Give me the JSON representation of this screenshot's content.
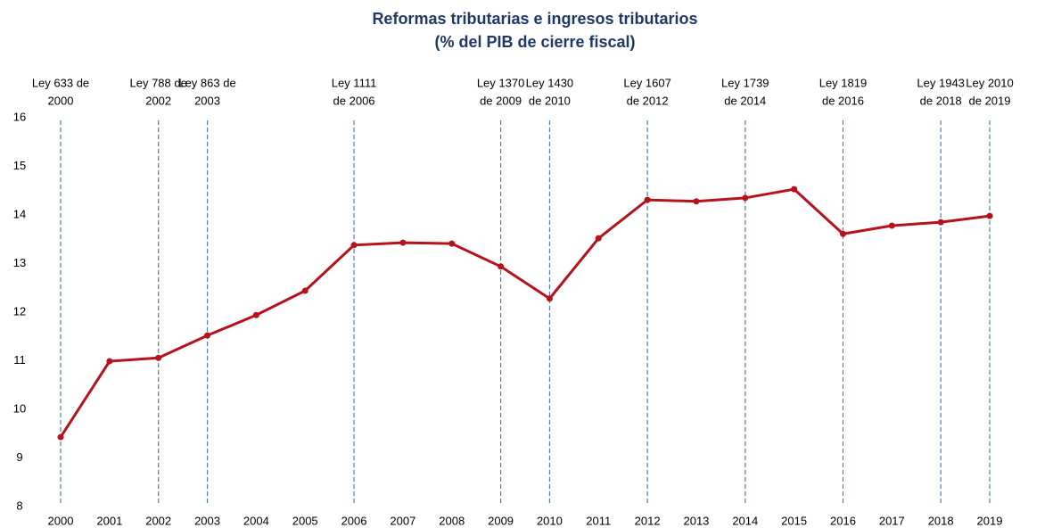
{
  "chart_data": {
    "type": "line",
    "title": "Reformas tributarias e ingresos tributarios",
    "subtitle": "(% del PIB de cierre fiscal)",
    "categories": [
      "2000",
      "2001",
      "2002",
      "2003",
      "2004",
      "2005",
      "2006",
      "2007",
      "2008",
      "2009",
      "2010",
      "2011",
      "2012",
      "2013",
      "2014",
      "2015",
      "2016",
      "2017",
      "2018",
      "2019"
    ],
    "series": [
      {
        "color": "#b5121b",
        "values": [
          9.43,
          10.99,
          11.06,
          11.52,
          11.94,
          12.44,
          13.38,
          13.43,
          13.41,
          12.94,
          12.28,
          13.52,
          14.31,
          14.28,
          14.35,
          14.53,
          13.61,
          13.78,
          13.85,
          13.98
        ]
      }
    ],
    "ylim": [
      8,
      16
    ],
    "yticks": [
      8,
      9,
      10,
      11,
      12,
      13,
      14,
      15,
      16
    ],
    "annotation_color": "#4a7ebb",
    "annotations": [
      {
        "x": "2000",
        "lines": [
          "Ley 633 de",
          "2000"
        ]
      },
      {
        "x": "2002",
        "lines": [
          "Ley 788 de",
          "2002"
        ]
      },
      {
        "x": "2003",
        "lines": [
          "Ley 863 de",
          "2003"
        ]
      },
      {
        "x": "2006",
        "lines": [
          "Ley 1111",
          "de 2006"
        ]
      },
      {
        "x": "2009",
        "lines": [
          "Ley 1370",
          "de 2009"
        ]
      },
      {
        "x": "2010",
        "lines": [
          "Ley 1430",
          "de 2010"
        ]
      },
      {
        "x": "2012",
        "lines": [
          "Ley 1607",
          "de 2012"
        ]
      },
      {
        "x": "2014",
        "lines": [
          "Ley 1739",
          "de 2014"
        ]
      },
      {
        "x": "2016",
        "lines": [
          "Ley 1819",
          "de 2016"
        ]
      },
      {
        "x": "2018",
        "lines": [
          "Ley 1943",
          "de 2018"
        ]
      },
      {
        "x": "2019",
        "lines": [
          "Ley 2010",
          "de 2019"
        ]
      }
    ]
  }
}
